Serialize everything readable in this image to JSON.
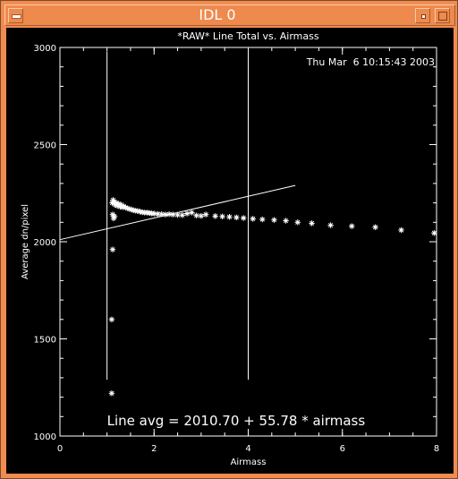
{
  "window": {
    "title": "IDL 0"
  },
  "chart_data": {
    "type": "scatter",
    "title": "*RAW* Line Total vs. Airmass",
    "timestamp": "Thu Mar  6 10:15:43 2003",
    "xlabel": "Airmass",
    "ylabel": "Average dn/pixel",
    "xlim": [
      0,
      8
    ],
    "ylim": [
      1000,
      3000
    ],
    "x_ticks": [
      "0",
      "2",
      "4",
      "6",
      "8"
    ],
    "y_ticks": [
      "1000",
      "1500",
      "2000",
      "2500",
      "3000"
    ],
    "x_tick_values": [
      0,
      2,
      4,
      6,
      8
    ],
    "y_tick_values": [
      1000,
      1500,
      2000,
      2500,
      3000
    ],
    "marker": "asterisk",
    "annotation": "Line avg = 2010.70 + 55.78 * airmass",
    "fit": {
      "intercept": 2010.7,
      "slope": 55.78,
      "x_range": [
        0,
        5
      ]
    },
    "vertical_lines": [
      1.0,
      4.0
    ],
    "vertical_line_range": [
      1290,
      2980
    ],
    "points": [
      {
        "x": 1.1,
        "y": 1220
      },
      {
        "x": 1.1,
        "y": 1600
      },
      {
        "x": 1.12,
        "y": 1960
      },
      {
        "x": 1.14,
        "y": 2120
      },
      {
        "x": 1.12,
        "y": 2140
      },
      {
        "x": 1.16,
        "y": 2130
      },
      {
        "x": 1.11,
        "y": 2200
      },
      {
        "x": 1.13,
        "y": 2215
      },
      {
        "x": 1.15,
        "y": 2205
      },
      {
        "x": 1.17,
        "y": 2190
      },
      {
        "x": 1.2,
        "y": 2200
      },
      {
        "x": 1.22,
        "y": 2185
      },
      {
        "x": 1.25,
        "y": 2195
      },
      {
        "x": 1.28,
        "y": 2180
      },
      {
        "x": 1.3,
        "y": 2190
      },
      {
        "x": 1.33,
        "y": 2178
      },
      {
        "x": 1.36,
        "y": 2182
      },
      {
        "x": 1.4,
        "y": 2175
      },
      {
        "x": 1.44,
        "y": 2172
      },
      {
        "x": 1.48,
        "y": 2168
      },
      {
        "x": 1.52,
        "y": 2166
      },
      {
        "x": 1.56,
        "y": 2162
      },
      {
        "x": 1.6,
        "y": 2160
      },
      {
        "x": 1.65,
        "y": 2158
      },
      {
        "x": 1.7,
        "y": 2155
      },
      {
        "x": 1.75,
        "y": 2152
      },
      {
        "x": 1.8,
        "y": 2150
      },
      {
        "x": 1.85,
        "y": 2150
      },
      {
        "x": 1.9,
        "y": 2148
      },
      {
        "x": 1.95,
        "y": 2146
      },
      {
        "x": 2.0,
        "y": 2145
      },
      {
        "x": 2.08,
        "y": 2143
      },
      {
        "x": 2.16,
        "y": 2142
      },
      {
        "x": 2.24,
        "y": 2140
      },
      {
        "x": 2.32,
        "y": 2142
      },
      {
        "x": 2.4,
        "y": 2140
      },
      {
        "x": 2.5,
        "y": 2138
      },
      {
        "x": 2.6,
        "y": 2137
      },
      {
        "x": 2.7,
        "y": 2145
      },
      {
        "x": 2.8,
        "y": 2150
      },
      {
        "x": 2.9,
        "y": 2135
      },
      {
        "x": 3.0,
        "y": 2133
      },
      {
        "x": 3.1,
        "y": 2140
      },
      {
        "x": 3.3,
        "y": 2132
      },
      {
        "x": 3.45,
        "y": 2130
      },
      {
        "x": 3.6,
        "y": 2128
      },
      {
        "x": 3.75,
        "y": 2125
      },
      {
        "x": 3.9,
        "y": 2122
      },
      {
        "x": 4.1,
        "y": 2118
      },
      {
        "x": 4.3,
        "y": 2115
      },
      {
        "x": 4.55,
        "y": 2112
      },
      {
        "x": 4.8,
        "y": 2108
      },
      {
        "x": 5.05,
        "y": 2100
      },
      {
        "x": 5.35,
        "y": 2095
      },
      {
        "x": 5.75,
        "y": 2085
      },
      {
        "x": 6.2,
        "y": 2080
      },
      {
        "x": 6.7,
        "y": 2075
      },
      {
        "x": 7.25,
        "y": 2060
      },
      {
        "x": 7.95,
        "y": 2045
      }
    ]
  }
}
